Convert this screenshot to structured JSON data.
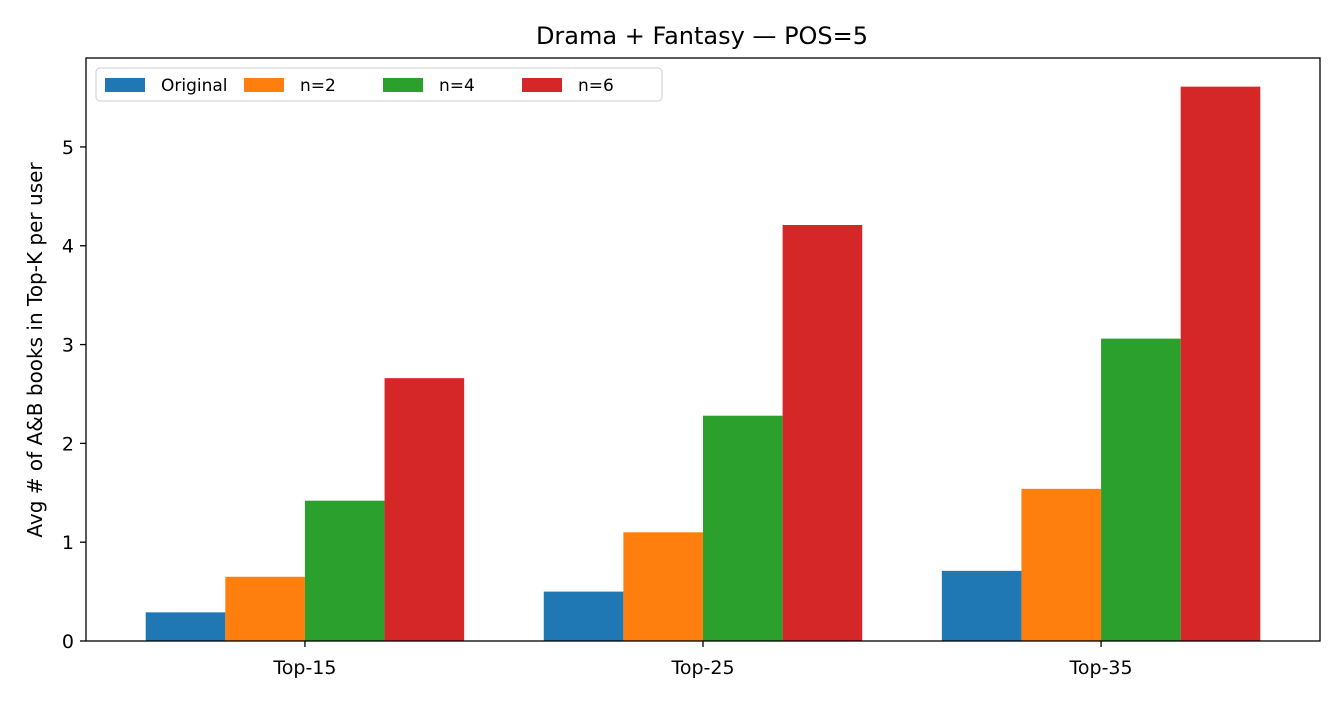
{
  "chart_data": {
    "type": "bar",
    "title": "Drama + Fantasy — POS=5",
    "xlabel": "",
    "ylabel": "Avg # of A&B books in Top-K per user",
    "categories": [
      "Top-15",
      "Top-25",
      "Top-35"
    ],
    "series": [
      {
        "name": "Original",
        "color": "#1f77b4",
        "values": [
          0.29,
          0.5,
          0.71
        ]
      },
      {
        "name": "n=2",
        "color": "#ff7f0e",
        "values": [
          0.65,
          1.1,
          1.54
        ]
      },
      {
        "name": "n=4",
        "color": "#2ca02c",
        "values": [
          1.42,
          2.28,
          3.06
        ]
      },
      {
        "name": "n=6",
        "color": "#d62728",
        "values": [
          2.66,
          4.21,
          5.61
        ]
      }
    ],
    "ylim": [
      0,
      5.9
    ],
    "yticks": [
      0,
      1,
      2,
      3,
      4,
      5
    ],
    "grid": false,
    "legend_position": "top-left"
  }
}
